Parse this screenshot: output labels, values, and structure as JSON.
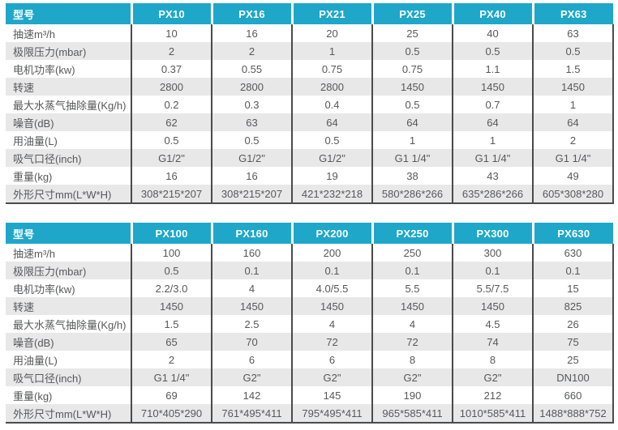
{
  "theme": {
    "accent_color": "#1ea7c9",
    "stripe_color": "#e8e8e9",
    "border_color": "#4a4b4d",
    "text_color": "#57585a",
    "header_text_color": "#ffffff"
  },
  "tables": [
    {
      "name": "px-small-models",
      "header_label": "型号",
      "columns": [
        "PX10",
        "PX16",
        "PX21",
        "PX25",
        "PX40",
        "PX63"
      ],
      "rows": [
        {
          "label": "抽速m³/h",
          "values": [
            "10",
            "16",
            "20",
            "25",
            "40",
            "63"
          ]
        },
        {
          "label": "极限压力(mbar)",
          "values": [
            "2",
            "2",
            "1",
            "0.5",
            "0.5",
            "0.5"
          ]
        },
        {
          "label": "电机功率(kw)",
          "values": [
            "0.37",
            "0.55",
            "0.75",
            "0.75",
            "1.1",
            "1.5"
          ]
        },
        {
          "label": "转速",
          "values": [
            "2800",
            "2800",
            "2800",
            "1450",
            "1450",
            "1450"
          ]
        },
        {
          "label": "最大水蒸气抽除量(Kg/h)",
          "values": [
            "0.2",
            "0.3",
            "0.4",
            "0.5",
            "0.7",
            "1"
          ]
        },
        {
          "label": "噪音(dB)",
          "values": [
            "62",
            "63",
            "64",
            "64",
            "64",
            "64"
          ]
        },
        {
          "label": "用油量(L)",
          "values": [
            "0.5",
            "0.5",
            "0.5",
            "1",
            "1",
            "2"
          ]
        },
        {
          "label": "吸气口径(inch)",
          "values": [
            "G1/2\"",
            "G1/2\"",
            "G1/2\"",
            "G1 1/4\"",
            "G1 1/4\"",
            "G1 1/4\""
          ]
        },
        {
          "label": "重量(kg)",
          "values": [
            "16",
            "16",
            "19",
            "38",
            "43",
            "49"
          ]
        },
        {
          "label": "外形尺寸mm(L*W*H)",
          "values": [
            "308*215*207",
            "308*215*207",
            "421*232*218",
            "580*286*266",
            "635*286*266",
            "605*308*280"
          ]
        }
      ]
    },
    {
      "name": "px-large-models",
      "header_label": "型号",
      "columns": [
        "PX100",
        "PX160",
        "PX200",
        "PX250",
        "PX300",
        "PX630"
      ],
      "rows": [
        {
          "label": "抽速m³/h",
          "values": [
            "100",
            "160",
            "200",
            "250",
            "300",
            "630"
          ]
        },
        {
          "label": "极限压力(mbar)",
          "values": [
            "0.5",
            "0.1",
            "0.1",
            "0.1",
            "0.1",
            "0.1"
          ]
        },
        {
          "label": "电机功率(kw)",
          "values": [
            "2.2/3.0",
            "4",
            "4.0/5.5",
            "5.5",
            "5.5/7.5",
            "15"
          ]
        },
        {
          "label": "转速",
          "values": [
            "1450",
            "1450",
            "1450",
            "1450",
            "1450",
            "825"
          ]
        },
        {
          "label": "最大水蒸气抽除量(Kg/h)",
          "values": [
            "1.5",
            "2.5",
            "4",
            "4",
            "4.5",
            "26"
          ]
        },
        {
          "label": "噪音(dB)",
          "values": [
            "65",
            "70",
            "72",
            "72",
            "74",
            "75"
          ]
        },
        {
          "label": "用油量(L)",
          "values": [
            "2",
            "6",
            "6",
            "8",
            "8",
            "25"
          ]
        },
        {
          "label": "吸气口径(inch)",
          "values": [
            "G1 1/4\"",
            "G2\"",
            "G2\"",
            "G2\"",
            "G2\"",
            "DN100"
          ]
        },
        {
          "label": "重量(kg)",
          "values": [
            "69",
            "142",
            "145",
            "190",
            "212",
            "660"
          ]
        },
        {
          "label": "外形尺寸mm(L*W*H)",
          "values": [
            "710*405*290",
            "761*495*411",
            "795*495*411",
            "965*585*411",
            "1010*585*411",
            "1488*888*752"
          ]
        }
      ]
    }
  ]
}
